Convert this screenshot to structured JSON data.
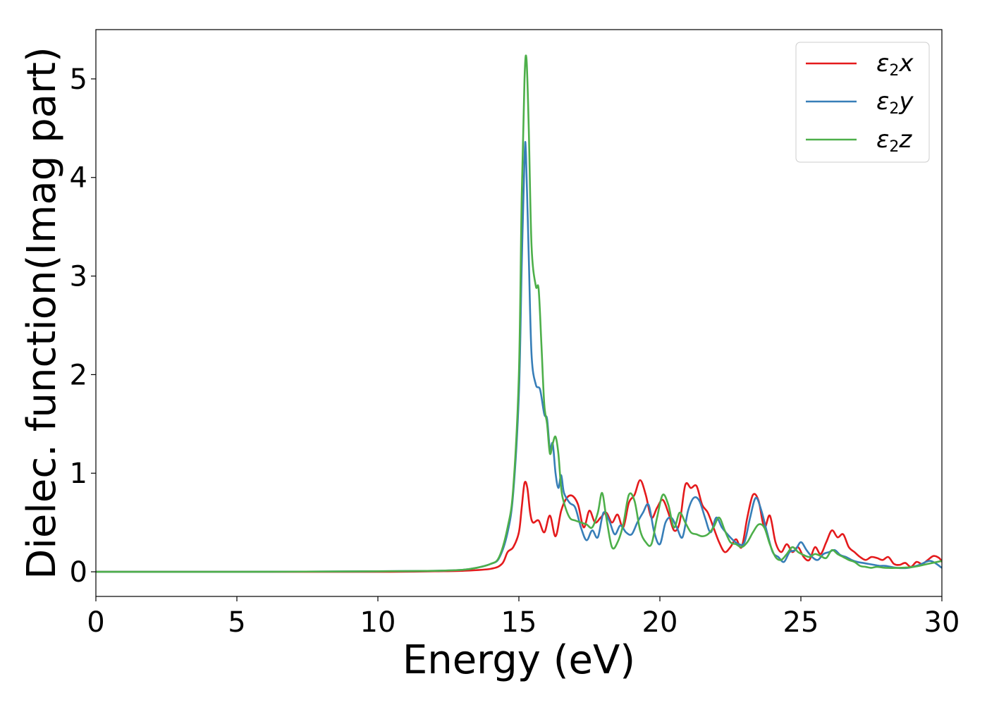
{
  "chart_data": {
    "type": "line",
    "xlabel": "Energy (eV)",
    "ylabel": "Dielec. function(Imag part)",
    "xlim": [
      0,
      30
    ],
    "ylim": [
      -0.25,
      5.5
    ],
    "xticks": [
      0,
      5,
      10,
      15,
      20,
      25,
      30
    ],
    "yticks": [
      0,
      1,
      2,
      3,
      4,
      5
    ],
    "grid": false,
    "legend_position": "top-right",
    "series": [
      {
        "name": "ε2x",
        "legend": {
          "base": "ε",
          "sub": "2",
          "suffix": "x"
        },
        "color": "#e41a1c",
        "x": [
          0,
          5,
          10,
          12,
          13,
          14,
          14.4,
          14.6,
          14.8,
          15.0,
          15.1,
          15.2,
          15.3,
          15.4,
          15.5,
          15.7,
          15.9,
          16.1,
          16.3,
          16.5,
          16.7,
          16.9,
          17.1,
          17.3,
          17.5,
          17.7,
          17.9,
          18.1,
          18.3,
          18.5,
          18.7,
          18.9,
          19.1,
          19.3,
          19.5,
          19.7,
          19.9,
          20.1,
          20.3,
          20.5,
          20.7,
          20.9,
          21.1,
          21.3,
          21.5,
          21.7,
          21.9,
          22.1,
          22.3,
          22.5,
          22.7,
          22.9,
          23.1,
          23.3,
          23.5,
          23.7,
          23.9,
          24.1,
          24.3,
          24.5,
          24.7,
          24.9,
          25.1,
          25.3,
          25.5,
          25.7,
          25.9,
          26.1,
          26.3,
          26.5,
          26.7,
          26.9,
          27.1,
          27.3,
          27.5,
          27.7,
          27.9,
          28.1,
          28.3,
          28.5,
          28.7,
          28.9,
          29.1,
          29.3,
          29.5,
          29.7,
          29.9,
          30.0
        ],
        "y": [
          0.0,
          0.0,
          0.0,
          0.005,
          0.01,
          0.03,
          0.08,
          0.2,
          0.25,
          0.4,
          0.65,
          0.9,
          0.85,
          0.6,
          0.5,
          0.52,
          0.4,
          0.57,
          0.36,
          0.62,
          0.75,
          0.77,
          0.68,
          0.45,
          0.62,
          0.5,
          0.55,
          0.6,
          0.5,
          0.58,
          0.45,
          0.7,
          0.78,
          0.93,
          0.78,
          0.55,
          0.65,
          0.73,
          0.6,
          0.42,
          0.5,
          0.88,
          0.85,
          0.87,
          0.68,
          0.6,
          0.45,
          0.3,
          0.2,
          0.25,
          0.33,
          0.25,
          0.55,
          0.78,
          0.72,
          0.45,
          0.57,
          0.3,
          0.2,
          0.28,
          0.2,
          0.25,
          0.15,
          0.12,
          0.25,
          0.18,
          0.3,
          0.42,
          0.35,
          0.38,
          0.25,
          0.2,
          0.15,
          0.12,
          0.15,
          0.14,
          0.12,
          0.15,
          0.08,
          0.07,
          0.09,
          0.05,
          0.1,
          0.08,
          0.12,
          0.16,
          0.14,
          0.1
        ]
      },
      {
        "name": "ε2y",
        "legend": {
          "base": "ε",
          "sub": "2",
          "suffix": "y"
        },
        "color": "#377eb8",
        "x": [
          0,
          5,
          10,
          12,
          13,
          13.5,
          14,
          14.3,
          14.6,
          14.8,
          15.0,
          15.1,
          15.2,
          15.25,
          15.35,
          15.45,
          15.6,
          15.75,
          15.9,
          16.0,
          16.1,
          16.2,
          16.3,
          16.4,
          16.5,
          16.6,
          16.8,
          17.0,
          17.2,
          17.4,
          17.6,
          17.8,
          18.0,
          18.2,
          18.4,
          18.6,
          18.8,
          19.0,
          19.2,
          19.4,
          19.6,
          19.8,
          20.0,
          20.2,
          20.4,
          20.6,
          20.8,
          21.0,
          21.2,
          21.4,
          21.6,
          21.8,
          22.0,
          22.2,
          22.4,
          22.6,
          22.8,
          23.0,
          23.2,
          23.4,
          23.6,
          23.8,
          24.0,
          24.2,
          24.4,
          24.6,
          24.8,
          25.0,
          25.2,
          25.4,
          25.6,
          25.8,
          26.0,
          26.2,
          26.4,
          26.6,
          26.8,
          27.0,
          27.2,
          27.4,
          27.6,
          27.8,
          28.0,
          28.4,
          28.8,
          29.2,
          29.6,
          30.0
        ],
        "y": [
          0.0,
          0.0,
          0.005,
          0.01,
          0.02,
          0.04,
          0.08,
          0.14,
          0.4,
          0.8,
          1.8,
          3.1,
          4.2,
          4.25,
          3.2,
          2.2,
          1.9,
          1.85,
          1.6,
          1.55,
          1.25,
          1.3,
          1.0,
          0.85,
          0.98,
          0.8,
          0.7,
          0.65,
          0.45,
          0.32,
          0.42,
          0.35,
          0.6,
          0.52,
          0.38,
          0.47,
          0.4,
          0.38,
          0.5,
          0.6,
          0.68,
          0.4,
          0.28,
          0.5,
          0.55,
          0.45,
          0.35,
          0.62,
          0.75,
          0.72,
          0.55,
          0.4,
          0.55,
          0.45,
          0.38,
          0.32,
          0.28,
          0.3,
          0.55,
          0.75,
          0.62,
          0.4,
          0.2,
          0.15,
          0.1,
          0.2,
          0.22,
          0.3,
          0.22,
          0.15,
          0.12,
          0.18,
          0.2,
          0.22,
          0.17,
          0.15,
          0.12,
          0.1,
          0.09,
          0.08,
          0.07,
          0.06,
          0.06,
          0.04,
          0.04,
          0.07,
          0.11,
          0.04
        ]
      },
      {
        "name": "ε2z",
        "legend": {
          "base": "ε",
          "sub": "2",
          "suffix": "z"
        },
        "color": "#4daf4a",
        "x": [
          0,
          5,
          10,
          12,
          13,
          13.5,
          14,
          14.3,
          14.6,
          14.8,
          15.0,
          15.1,
          15.2,
          15.27,
          15.35,
          15.45,
          15.6,
          15.7,
          15.8,
          15.9,
          16.0,
          16.1,
          16.2,
          16.3,
          16.4,
          16.5,
          16.6,
          16.8,
          17.0,
          17.2,
          17.4,
          17.6,
          17.8,
          17.95,
          18.1,
          18.3,
          18.5,
          18.7,
          18.9,
          19.1,
          19.3,
          19.5,
          19.7,
          19.9,
          20.1,
          20.3,
          20.5,
          20.7,
          20.9,
          21.1,
          21.3,
          21.5,
          21.7,
          21.9,
          22.1,
          22.3,
          22.5,
          22.7,
          22.9,
          23.1,
          23.3,
          23.5,
          23.7,
          23.9,
          24.1,
          24.3,
          24.5,
          24.7,
          24.9,
          25.1,
          25.3,
          25.5,
          25.7,
          25.9,
          26.1,
          26.3,
          26.5,
          26.7,
          26.9,
          27.1,
          27.3,
          27.5,
          27.7,
          28.0,
          28.5,
          29.0,
          29.5,
          30.0
        ],
        "y": [
          0.0,
          0.0,
          0.005,
          0.01,
          0.02,
          0.04,
          0.08,
          0.15,
          0.45,
          0.85,
          2.0,
          3.8,
          5.0,
          5.2,
          4.5,
          3.3,
          2.9,
          2.87,
          2.3,
          1.7,
          1.5,
          1.2,
          1.3,
          1.37,
          1.2,
          0.85,
          0.7,
          0.55,
          0.52,
          0.5,
          0.48,
          0.45,
          0.6,
          0.8,
          0.55,
          0.25,
          0.3,
          0.48,
          0.78,
          0.72,
          0.42,
          0.3,
          0.28,
          0.55,
          0.78,
          0.68,
          0.45,
          0.6,
          0.5,
          0.4,
          0.38,
          0.36,
          0.38,
          0.45,
          0.55,
          0.42,
          0.3,
          0.28,
          0.25,
          0.3,
          0.4,
          0.48,
          0.45,
          0.28,
          0.15,
          0.12,
          0.18,
          0.25,
          0.2,
          0.17,
          0.15,
          0.18,
          0.16,
          0.14,
          0.22,
          0.18,
          0.15,
          0.12,
          0.1,
          0.06,
          0.05,
          0.04,
          0.05,
          0.04,
          0.04,
          0.05,
          0.08,
          0.11
        ]
      }
    ]
  }
}
